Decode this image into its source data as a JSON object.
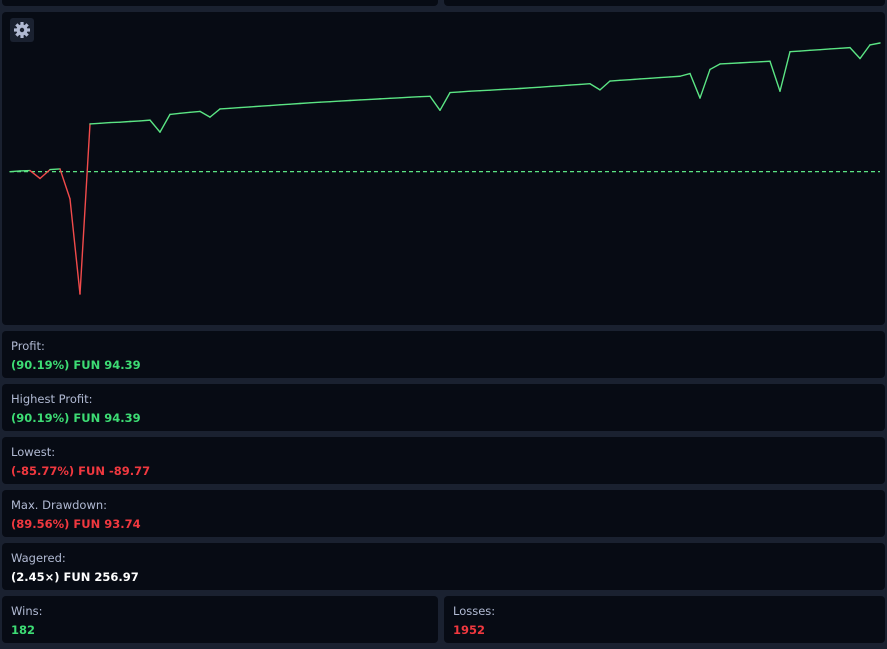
{
  "chart_data": {
    "type": "line",
    "values": [
      0,
      0.5,
      0.8,
      -5,
      1.5,
      2,
      -20,
      -89.77,
      35,
      35.5,
      36,
      36.3,
      36.8,
      37.2,
      37.8,
      29,
      42,
      42.8,
      43.5,
      44.2,
      40,
      46,
      46.5,
      47,
      47.5,
      48,
      48.5,
      49,
      49.5,
      50,
      50.5,
      51,
      51.3,
      51.8,
      52.2,
      52.6,
      53,
      53.4,
      53.8,
      54.2,
      54.6,
      55,
      55.3,
      45,
      58,
      58.5,
      59,
      59.4,
      59.8,
      60.2,
      60.6,
      61,
      61.5,
      62,
      62.5,
      63,
      63.5,
      64,
      64.5,
      60,
      66.5,
      67,
      67.5,
      68,
      68.5,
      69,
      69.5,
      70,
      72,
      54,
      75,
      79,
      79.4,
      79.8,
      80.2,
      80.6,
      81,
      59,
      88,
      88.5,
      89,
      89.5,
      90,
      90.5,
      91,
      83,
      93,
      94.39
    ],
    "colors": {
      "positive": "#5be584",
      "negative": "#f24b4b"
    }
  },
  "stats": [
    {
      "label": "Profit:",
      "value": "(90.19%) FUN 94.39"
    },
    {
      "label": "Highest Profit:",
      "value": "(90.19%) FUN 94.39"
    },
    {
      "label": "Lowest:",
      "value": "(-85.77%) FUN -89.77"
    },
    {
      "label": "Max. Drawdown:",
      "value": "(89.56%) FUN 93.74"
    },
    {
      "label": "Wagered:",
      "value": "(2.45×) FUN 256.97"
    }
  ],
  "counts": [
    {
      "label": "Wins:",
      "value": "182"
    },
    {
      "label": "Losses:",
      "value": "1952"
    }
  ]
}
